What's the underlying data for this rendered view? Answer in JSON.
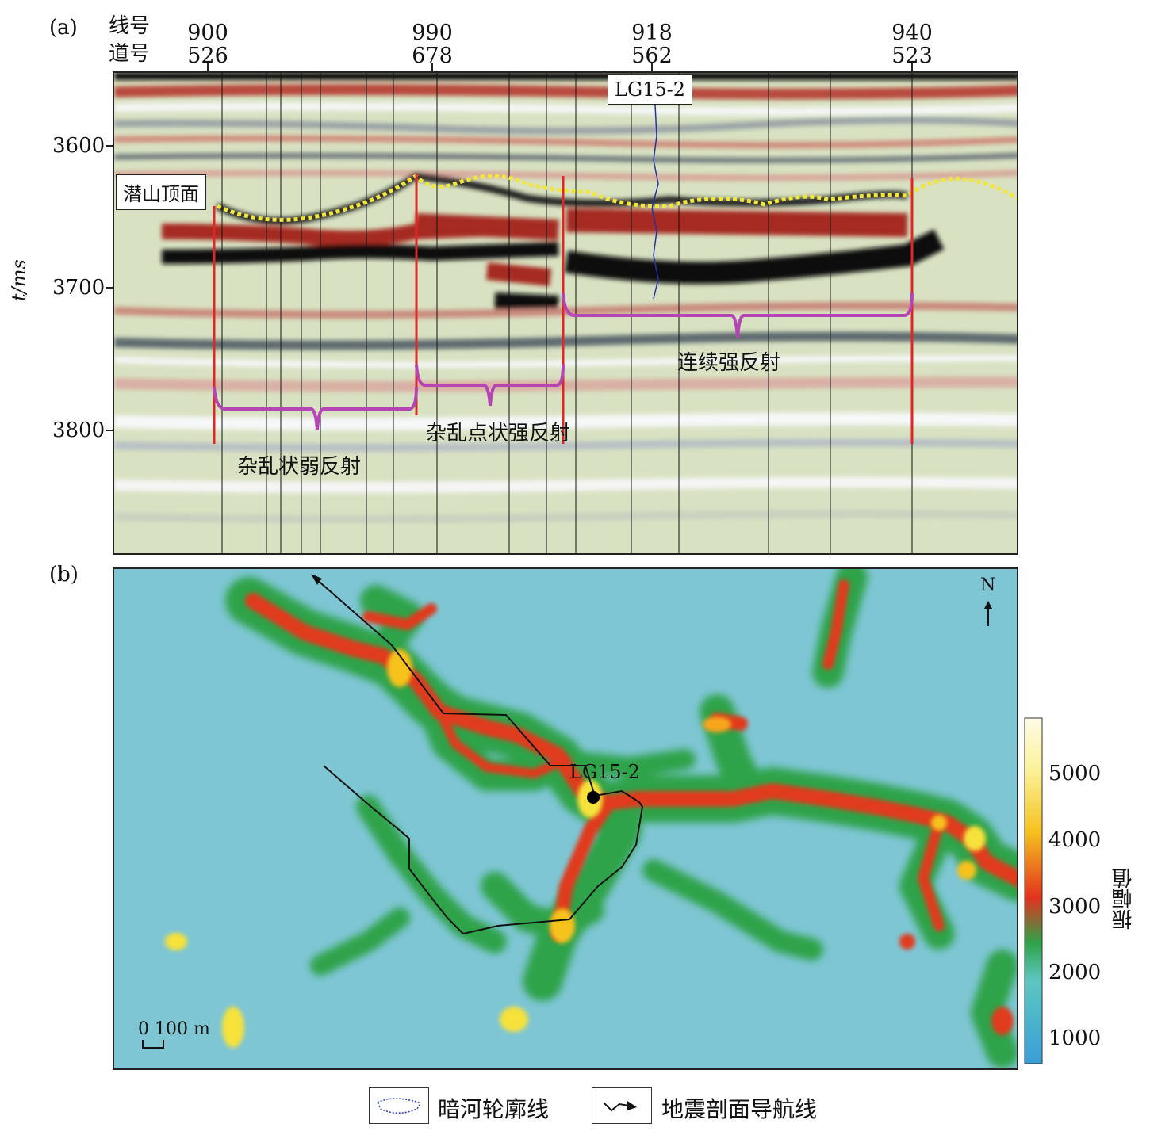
{
  "panel_a": {
    "label": "(a)",
    "row_labels": {
      "line": "线号",
      "trace": "道号"
    },
    "columns": [
      {
        "line": "900",
        "trace": "526"
      },
      {
        "line": "990",
        "trace": "678"
      },
      {
        "line": "918",
        "trace": "562"
      },
      {
        "line": "940",
        "trace": "523"
      }
    ],
    "y_axis": {
      "label": "t/ms",
      "ticks": [
        "3600",
        "3700",
        "3800"
      ]
    },
    "well": "LG15-2",
    "horizon": "潜山顶面",
    "zones": [
      "杂乱状弱反射",
      "杂乱点状强反射",
      "连续强反射"
    ]
  },
  "panel_b": {
    "label": "(b)",
    "well": "LG15-2",
    "north": "N",
    "scale": "0 100 m",
    "colorbar": {
      "title": "振幅值",
      "ticks": [
        "5000",
        "4000",
        "3000",
        "2000",
        "1000"
      ]
    }
  },
  "legend": {
    "outline": "暗河轮廓线",
    "navline": "地震剖面导航线"
  }
}
